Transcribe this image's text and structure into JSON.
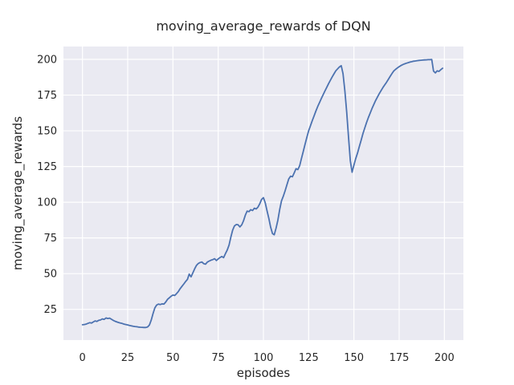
{
  "chart_data": {
    "type": "line",
    "title": "moving_average_rewards of DQN",
    "xlabel": "episodes",
    "ylabel": "moving_average_rewards",
    "legend": false,
    "grid": true,
    "grid_style": "seaborn-darkgrid",
    "x_ticks": [
      0,
      25,
      50,
      75,
      100,
      125,
      150,
      175,
      200
    ],
    "y_ticks": [
      25,
      50,
      75,
      100,
      125,
      150,
      175,
      200
    ],
    "xlim": [
      -10.5,
      210.5
    ],
    "ylim": [
      3.5,
      209.0
    ],
    "colors": {
      "line": "#4C72B0",
      "plot_background": "#EAEAF2",
      "grid": "#FFFFFF",
      "text": "#262626",
      "figure_background": "#FFFFFF"
    },
    "series": [
      {
        "name": "moving_average_rewards",
        "points": [
          [
            0,
            14.2
          ],
          [
            1,
            14.4
          ],
          [
            2,
            14.7
          ],
          [
            3,
            15.2
          ],
          [
            4,
            15.7
          ],
          [
            5,
            15.4
          ],
          [
            6,
            16.2
          ],
          [
            7,
            16.9
          ],
          [
            8,
            16.6
          ],
          [
            9,
            17.3
          ],
          [
            10,
            17.6
          ],
          [
            11,
            18.3
          ],
          [
            12,
            18.0
          ],
          [
            13,
            19.0
          ],
          [
            14,
            18.6
          ],
          [
            15,
            18.9
          ],
          [
            16,
            18.1
          ],
          [
            17,
            17.3
          ],
          [
            18,
            16.7
          ],
          [
            19,
            16.2
          ],
          [
            20,
            15.8
          ],
          [
            21,
            15.4
          ],
          [
            22,
            15.1
          ],
          [
            23,
            14.7
          ],
          [
            24,
            14.4
          ],
          [
            25,
            14.1
          ],
          [
            26,
            13.8
          ],
          [
            27,
            13.5
          ],
          [
            28,
            13.2
          ],
          [
            29,
            13.0
          ],
          [
            30,
            12.8
          ],
          [
            31,
            12.6
          ],
          [
            32,
            12.5
          ],
          [
            33,
            12.4
          ],
          [
            34,
            12.3
          ],
          [
            35,
            12.3
          ],
          [
            36,
            12.7
          ],
          [
            37,
            14.0
          ],
          [
            38,
            17.5
          ],
          [
            39,
            22.0
          ],
          [
            40,
            26.0
          ],
          [
            41,
            28.0
          ],
          [
            42,
            28.7
          ],
          [
            43,
            28.4
          ],
          [
            44,
            28.9
          ],
          [
            45,
            28.7
          ],
          [
            46,
            30.1
          ],
          [
            47,
            32.0
          ],
          [
            48,
            33.1
          ],
          [
            49,
            34.2
          ],
          [
            50,
            35.0
          ],
          [
            51,
            34.7
          ],
          [
            52,
            36.0
          ],
          [
            53,
            37.5
          ],
          [
            54,
            39.5
          ],
          [
            55,
            41.2
          ],
          [
            56,
            42.8
          ],
          [
            57,
            44.5
          ],
          [
            58,
            46.0
          ],
          [
            59,
            49.7
          ],
          [
            60,
            47.8
          ],
          [
            61,
            50.5
          ],
          [
            62,
            53.4
          ],
          [
            63,
            55.8
          ],
          [
            64,
            57.1
          ],
          [
            65,
            57.8
          ],
          [
            66,
            58.2
          ],
          [
            67,
            57.0
          ],
          [
            68,
            56.6
          ],
          [
            69,
            58.1
          ],
          [
            70,
            58.8
          ],
          [
            71,
            59.4
          ],
          [
            72,
            59.8
          ],
          [
            73,
            60.5
          ],
          [
            74,
            59.2
          ],
          [
            75,
            60.3
          ],
          [
            76,
            61.3
          ],
          [
            77,
            62.0
          ],
          [
            78,
            61.2
          ],
          [
            79,
            64.0
          ],
          [
            80,
            66.5
          ],
          [
            81,
            70.0
          ],
          [
            82,
            75.5
          ],
          [
            83,
            80.5
          ],
          [
            84,
            83.4
          ],
          [
            85,
            84.4
          ],
          [
            86,
            84.2
          ],
          [
            87,
            82.7
          ],
          [
            88,
            84.2
          ],
          [
            89,
            87.0
          ],
          [
            90,
            91.0
          ],
          [
            91,
            93.8
          ],
          [
            92,
            93.4
          ],
          [
            93,
            94.8
          ],
          [
            94,
            94.2
          ],
          [
            95,
            95.8
          ],
          [
            96,
            95.3
          ],
          [
            97,
            96.6
          ],
          [
            98,
            99.0
          ],
          [
            99,
            102.0
          ],
          [
            100,
            103.2
          ],
          [
            101,
            99.5
          ],
          [
            102,
            94.0
          ],
          [
            103,
            88.5
          ],
          [
            104,
            82.5
          ],
          [
            105,
            78.0
          ],
          [
            106,
            77.2
          ],
          [
            107,
            82.0
          ],
          [
            108,
            87.5
          ],
          [
            109,
            95.0
          ],
          [
            110,
            101.0
          ],
          [
            111,
            104.3
          ],
          [
            112,
            108.0
          ],
          [
            113,
            112.3
          ],
          [
            114,
            116.3
          ],
          [
            115,
            118.2
          ],
          [
            116,
            117.8
          ],
          [
            117,
            120.5
          ],
          [
            118,
            123.5
          ],
          [
            119,
            122.8
          ],
          [
            120,
            125.5
          ],
          [
            121,
            130.5
          ],
          [
            122,
            135.5
          ],
          [
            123,
            140.5
          ],
          [
            124,
            145.5
          ],
          [
            125,
            150.0
          ],
          [
            126,
            153.6
          ],
          [
            127,
            157.1
          ],
          [
            128,
            160.5
          ],
          [
            129,
            163.8
          ],
          [
            130,
            167.0
          ],
          [
            131,
            169.8
          ],
          [
            132,
            172.6
          ],
          [
            133,
            175.3
          ],
          [
            134,
            177.9
          ],
          [
            135,
            180.5
          ],
          [
            136,
            183.0
          ],
          [
            137,
            185.4
          ],
          [
            138,
            187.7
          ],
          [
            139,
            189.9
          ],
          [
            140,
            192.0
          ],
          [
            141,
            193.4
          ],
          [
            142,
            194.7
          ],
          [
            143,
            195.6
          ],
          [
            144,
            190.0
          ],
          [
            145,
            178.0
          ],
          [
            146,
            163.0
          ],
          [
            147,
            146.0
          ],
          [
            148,
            129.0
          ],
          [
            149,
            121.0
          ],
          [
            150,
            126.0
          ],
          [
            151,
            130.5
          ],
          [
            152,
            134.5
          ],
          [
            153,
            139.0
          ],
          [
            154,
            143.5
          ],
          [
            155,
            148.0
          ],
          [
            156,
            152.0
          ],
          [
            157,
            155.8
          ],
          [
            158,
            159.3
          ],
          [
            159,
            162.5
          ],
          [
            160,
            165.6
          ],
          [
            161,
            168.5
          ],
          [
            162,
            171.2
          ],
          [
            163,
            173.7
          ],
          [
            164,
            176.0
          ],
          [
            165,
            178.2
          ],
          [
            166,
            180.2
          ],
          [
            167,
            182.1
          ],
          [
            168,
            183.9
          ],
          [
            169,
            186.0
          ],
          [
            170,
            188.0
          ],
          [
            171,
            190.0
          ],
          [
            172,
            191.8
          ],
          [
            173,
            193.0
          ],
          [
            174,
            194.0
          ],
          [
            175,
            194.9
          ],
          [
            176,
            195.7
          ],
          [
            177,
            196.3
          ],
          [
            178,
            196.9
          ],
          [
            179,
            197.3
          ],
          [
            180,
            197.7
          ],
          [
            181,
            198.1
          ],
          [
            182,
            198.4
          ],
          [
            183,
            198.7
          ],
          [
            184,
            198.9
          ],
          [
            185,
            199.1
          ],
          [
            186,
            199.3
          ],
          [
            187,
            199.4
          ],
          [
            188,
            199.5
          ],
          [
            189,
            199.6
          ],
          [
            190,
            199.7
          ],
          [
            191,
            199.8
          ],
          [
            192,
            199.8
          ],
          [
            193,
            199.9
          ],
          [
            194,
            191.8
          ],
          [
            195,
            190.5
          ],
          [
            196,
            192.0
          ],
          [
            197,
            191.6
          ],
          [
            198,
            192.8
          ],
          [
            199,
            193.8
          ]
        ]
      }
    ]
  }
}
